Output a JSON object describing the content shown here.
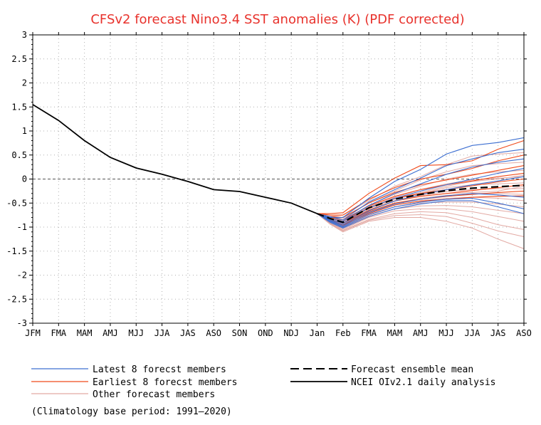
{
  "chart_data": {
    "type": "line",
    "title": "CFSv2 forecast Nino3.4 SST anomalies (K) (PDF corrected)",
    "xlabel": "",
    "ylabel": "",
    "x_ticks": [
      "JFM",
      "FMA",
      "MAM",
      "AMJ",
      "MJJ",
      "JJA",
      "JAS",
      "ASO",
      "SON",
      "OND",
      "NDJ",
      "Jan",
      "Feb",
      "FMA",
      "MAM",
      "AMJ",
      "MJJ",
      "JJA",
      "JAS",
      "ASO"
    ],
    "y_ticks": [
      "3",
      "2.5",
      "2",
      "1.5",
      "1",
      "0.5",
      "0",
      "-0.5",
      "-1",
      "-1.5",
      "-2",
      "-2.5",
      "-3"
    ],
    "ylim": [
      -3,
      3
    ],
    "grid": true,
    "zero_line": true,
    "colors": {
      "latest": "#3d6fd1",
      "earliest": "#f04a1a",
      "other": "#e3aaa4",
      "mean": "#000000",
      "observed": "#000000",
      "title": "#e8322c"
    },
    "series": [
      {
        "name": "NCEI OIv2.1 daily analysis",
        "x": [
          0,
          1,
          2,
          3,
          4,
          5,
          6,
          7,
          8,
          9,
          10,
          11
        ],
        "values": [
          1.55,
          1.22,
          0.8,
          0.45,
          0.23,
          0.1,
          -0.05,
          -0.22,
          -0.26,
          -0.38,
          -0.5,
          -0.72
        ]
      },
      {
        "name": "Forecast ensemble mean",
        "x": [
          11,
          11.5,
          12,
          13,
          14,
          15,
          16,
          17,
          18,
          19
        ],
        "values": [
          -0.72,
          -0.82,
          -0.9,
          -0.6,
          -0.42,
          -0.32,
          -0.24,
          -0.19,
          -0.16,
          -0.13
        ]
      }
    ],
    "members": {
      "x": [
        11,
        11.5,
        12,
        13,
        14,
        15,
        16,
        17,
        18,
        19
      ],
      "latest_values": [
        [
          -0.72,
          -0.8,
          -0.8,
          -0.4,
          -0.05,
          0.2,
          0.52,
          0.7,
          0.76,
          0.86
        ],
        [
          -0.72,
          -0.78,
          -0.85,
          -0.48,
          -0.22,
          0.02,
          0.28,
          0.42,
          0.55,
          0.62
        ],
        [
          -0.72,
          -0.82,
          -0.88,
          -0.55,
          -0.3,
          -0.1,
          0.1,
          0.25,
          0.35,
          0.42
        ],
        [
          -0.72,
          -0.84,
          -0.92,
          -0.6,
          -0.4,
          -0.25,
          -0.12,
          0.0,
          0.12,
          0.22
        ],
        [
          -0.72,
          -0.86,
          -0.95,
          -0.66,
          -0.46,
          -0.32,
          -0.22,
          -0.12,
          -0.04,
          0.05
        ],
        [
          -0.72,
          -0.87,
          -0.98,
          -0.7,
          -0.52,
          -0.42,
          -0.35,
          -0.3,
          -0.33,
          -0.38
        ],
        [
          -0.72,
          -0.88,
          -1.0,
          -0.74,
          -0.58,
          -0.48,
          -0.42,
          -0.4,
          -0.5,
          -0.62
        ],
        [
          -0.72,
          -0.9,
          -1.02,
          -0.78,
          -0.62,
          -0.52,
          -0.45,
          -0.45,
          -0.58,
          -0.72
        ]
      ],
      "earliest_values": [
        [
          -0.72,
          -0.72,
          -0.7,
          -0.3,
          0.02,
          0.28,
          0.3,
          0.38,
          0.62,
          0.8
        ],
        [
          -0.72,
          -0.75,
          -0.75,
          -0.42,
          -0.18,
          0.0,
          0.1,
          0.22,
          0.38,
          0.5
        ],
        [
          -0.72,
          -0.78,
          -0.8,
          -0.5,
          -0.28,
          -0.12,
          -0.02,
          0.08,
          0.18,
          0.28
        ],
        [
          -0.72,
          -0.8,
          -0.85,
          -0.56,
          -0.36,
          -0.22,
          -0.12,
          -0.04,
          0.05,
          0.12
        ],
        [
          -0.72,
          -0.82,
          -0.88,
          -0.6,
          -0.4,
          -0.3,
          -0.22,
          -0.14,
          -0.06,
          0.0
        ],
        [
          -0.72,
          -0.84,
          -0.92,
          -0.65,
          -0.46,
          -0.36,
          -0.3,
          -0.24,
          -0.18,
          -0.12
        ],
        [
          -0.72,
          -0.85,
          -0.95,
          -0.68,
          -0.5,
          -0.42,
          -0.36,
          -0.32,
          -0.28,
          -0.25
        ],
        [
          -0.72,
          -0.86,
          -0.96,
          -0.72,
          -0.54,
          -0.46,
          -0.42,
          -0.38,
          -0.36,
          -0.35
        ]
      ],
      "other_values": [
        [
          -0.72,
          -0.78,
          -0.75,
          -0.45,
          -0.15,
          0.05,
          0.3,
          0.48,
          0.52,
          0.55
        ],
        [
          -0.72,
          -0.8,
          -0.82,
          -0.5,
          -0.25,
          -0.02,
          0.15,
          0.28,
          0.32,
          0.35
        ],
        [
          -0.72,
          -0.82,
          -0.86,
          -0.55,
          -0.32,
          -0.15,
          0.0,
          0.1,
          0.15,
          0.18
        ],
        [
          -0.72,
          -0.84,
          -0.9,
          -0.6,
          -0.38,
          -0.22,
          -0.1,
          -0.02,
          0.02,
          0.05
        ],
        [
          -0.72,
          -0.85,
          -0.92,
          -0.62,
          -0.42,
          -0.3,
          -0.18,
          -0.12,
          -0.1,
          -0.08
        ],
        [
          -0.72,
          -0.86,
          -0.95,
          -0.66,
          -0.46,
          -0.34,
          -0.26,
          -0.22,
          -0.2,
          -0.2
        ],
        [
          -0.72,
          -0.87,
          -0.97,
          -0.7,
          -0.5,
          -0.4,
          -0.34,
          -0.3,
          -0.3,
          -0.32
        ],
        [
          -0.72,
          -0.88,
          -0.99,
          -0.72,
          -0.54,
          -0.45,
          -0.4,
          -0.38,
          -0.4,
          -0.45
        ],
        [
          -0.72,
          -0.89,
          -1.01,
          -0.76,
          -0.58,
          -0.5,
          -0.48,
          -0.48,
          -0.52,
          -0.58
        ],
        [
          -0.72,
          -0.9,
          -1.03,
          -0.78,
          -0.62,
          -0.56,
          -0.55,
          -0.58,
          -0.65,
          -0.72
        ],
        [
          -0.72,
          -0.91,
          -1.05,
          -0.8,
          -0.66,
          -0.62,
          -0.62,
          -0.68,
          -0.78,
          -0.88
        ],
        [
          -0.72,
          -0.92,
          -1.07,
          -0.84,
          -0.72,
          -0.68,
          -0.7,
          -0.8,
          -0.95,
          -1.05
        ],
        [
          -0.72,
          -0.93,
          -1.08,
          -0.86,
          -0.76,
          -0.74,
          -0.78,
          -0.92,
          -1.08,
          -1.2
        ],
        [
          -0.72,
          -0.94,
          -1.1,
          -0.88,
          -0.8,
          -0.8,
          -0.88,
          -1.02,
          -1.25,
          -1.45
        ],
        [
          -0.72,
          -0.83,
          -0.88,
          -0.58,
          -0.4,
          -0.28,
          -0.15,
          -0.05,
          0.0,
          0.08
        ],
        [
          -0.72,
          -0.86,
          -0.94,
          -0.64,
          -0.45,
          -0.36,
          -0.3,
          -0.28,
          -0.25,
          -0.15
        ]
      ]
    }
  },
  "legend": {
    "latest": "Latest 8 forecst members",
    "earliest": "Earliest 8 forecst members",
    "other": "Other forecast members",
    "mean": "Forecast ensemble mean",
    "observed": "NCEI OIv2.1 daily analysis"
  },
  "footnote": "(Climatology base period: 1991—2020)"
}
